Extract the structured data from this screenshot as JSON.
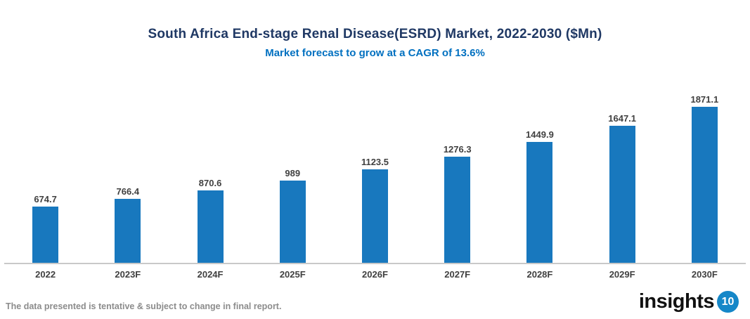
{
  "header": {
    "title": "South Africa End-stage Renal Disease(ESRD) Market, 2022-2030 ($Mn)",
    "subtitle": "Market forecast to grow at a CAGR of 13.6%"
  },
  "chart_data": {
    "type": "bar",
    "title": "South Africa End-stage Renal Disease(ESRD) Market, 2022-2030 ($Mn)",
    "subtitle": "Market forecast to grow at a CAGR of 13.6%",
    "categories": [
      "2022",
      "2023F",
      "2024F",
      "2025F",
      "2026F",
      "2027F",
      "2028F",
      "2029F",
      "2030F"
    ],
    "values": [
      674.7,
      766.4,
      870.6,
      989,
      1123.5,
      1276.3,
      1449.9,
      1647.1,
      1871.1
    ],
    "value_labels": [
      "674.7",
      "766.4",
      "870.6",
      "989",
      "1123.5",
      "1276.3",
      "1449.9",
      "1647.1",
      "1871.1"
    ],
    "xlabel": "",
    "ylabel": "",
    "ylim": [
      0,
      2000
    ],
    "grid": false,
    "legend": "none",
    "bar_color": "#1878BE"
  },
  "footer": {
    "disclaimer": "The data presented is tentative & subject to change in final report.",
    "logo_text": "insights",
    "logo_badge": "10"
  },
  "colors": {
    "title": "#1F3864",
    "subtitle": "#0070C0",
    "data_label": "#404040",
    "axis_line": "#C9C9C9",
    "bar": "#1878BE",
    "disclaimer_text": "#8C8C8C",
    "logo_text": "#111111",
    "logo_badge_bg": "#1587C8",
    "logo_badge_text": "#FFFFFF"
  }
}
